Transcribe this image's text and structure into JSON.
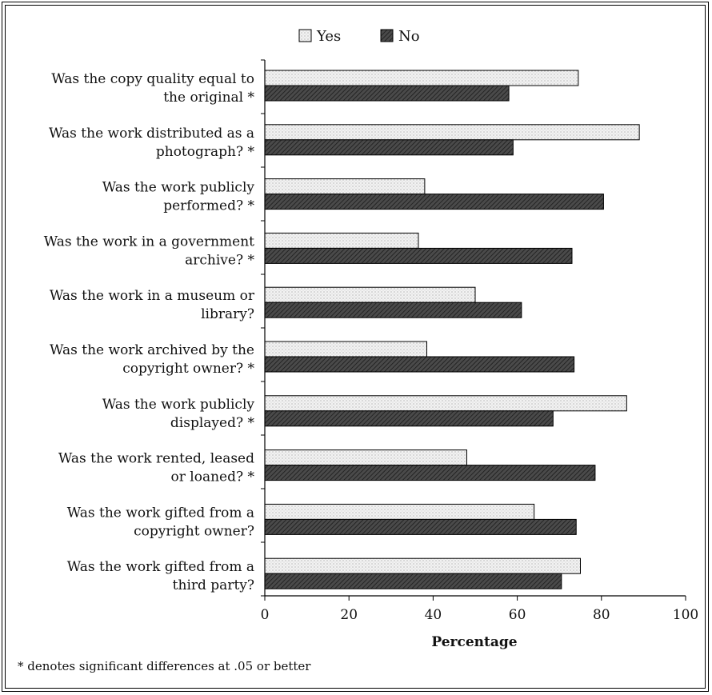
{
  "chart_data": {
    "type": "bar",
    "orientation": "horizontal",
    "categories": [
      [
        "Was the copy quality equal to",
        "the original *"
      ],
      [
        "Was the work distributed as a",
        "photograph? *"
      ],
      [
        "Was the work publicly",
        "performed? *"
      ],
      [
        "Was the work in a government",
        "archive? *"
      ],
      [
        "Was the work in a museum or",
        "library?"
      ],
      [
        "Was the work archived by the",
        "copyright owner? *"
      ],
      [
        "Was the work publicly",
        "displayed? *"
      ],
      [
        "Was the work rented, leased",
        "or loaned? *"
      ],
      [
        "Was the work gifted from a",
        "copyright owner?"
      ],
      [
        "Was the work gifted from a",
        "third party?"
      ]
    ],
    "series": [
      {
        "name": "Yes",
        "values": [
          74.5,
          89,
          38,
          36.5,
          50,
          38.5,
          86,
          48,
          64,
          75
        ]
      },
      {
        "name": "No",
        "values": [
          58,
          59,
          80.5,
          73,
          61,
          73.5,
          68.5,
          78.5,
          74,
          70.5
        ]
      }
    ],
    "xlabel": "Percentage",
    "xlim": [
      0,
      100
    ],
    "xticks": [
      0,
      20,
      40,
      60,
      80,
      100
    ],
    "legend_position": "top",
    "grid": false,
    "footnote": "* denotes significant differences at .05 or better"
  },
  "colors": {
    "yes": "#e8e8e8",
    "no": "#3a3a3a",
    "axis": "#000000"
  }
}
